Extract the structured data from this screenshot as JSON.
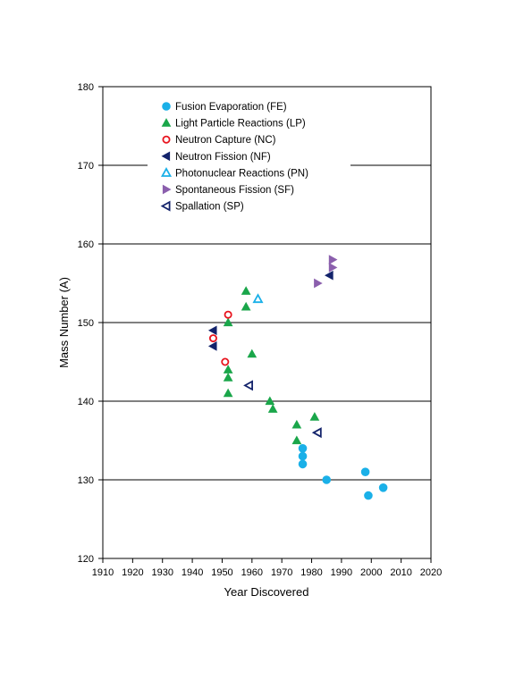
{
  "chart_data": {
    "type": "scatter",
    "xlabel": "Year Discovered",
    "ylabel": "Mass Number (A)",
    "xlim": [
      1910,
      2020
    ],
    "ylim": [
      120,
      180
    ],
    "x_ticks": [
      "1910",
      "1920",
      "1930",
      "1940",
      "1950",
      "1960",
      "1970",
      "1980",
      "1990",
      "2000",
      "2010",
      "2020"
    ],
    "y_ticks": [
      "120",
      "130",
      "140",
      "150",
      "160",
      "170",
      "180"
    ],
    "grid": "horizontal major",
    "legend_position": "upper-left inside",
    "series": [
      {
        "name": "Fusion Evaporation (FE)",
        "marker": "circle",
        "filled": true,
        "color": "#1ab0e8",
        "points": [
          [
            1977,
            134
          ],
          [
            1977,
            133
          ],
          [
            1977,
            132
          ],
          [
            1985,
            130
          ],
          [
            1998,
            131
          ],
          [
            1999,
            128
          ],
          [
            2004,
            129
          ]
        ]
      },
      {
        "name": "Light Particle Reactions (LP)",
        "marker": "triangle-up",
        "filled": true,
        "color": "#1aa64a",
        "points": [
          [
            1952,
            150
          ],
          [
            1958,
            154
          ],
          [
            1958,
            152
          ],
          [
            1960,
            146
          ],
          [
            1952,
            144
          ],
          [
            1952,
            143
          ],
          [
            1952,
            141
          ],
          [
            1966,
            140
          ],
          [
            1967,
            139
          ],
          [
            1975,
            137
          ],
          [
            1975,
            135
          ],
          [
            1981,
            138
          ]
        ]
      },
      {
        "name": "Neutron Capture (NC)",
        "marker": "circle",
        "filled": false,
        "color": "#e8141e",
        "points": [
          [
            1952,
            151
          ],
          [
            1947,
            148
          ],
          [
            1951,
            145
          ]
        ]
      },
      {
        "name": "Neutron Fission (NF)",
        "marker": "triangle-left",
        "filled": true,
        "color": "#13236b",
        "points": [
          [
            1947,
            149
          ],
          [
            1947,
            147
          ],
          [
            1986,
            156
          ]
        ]
      },
      {
        "name": "Photonuclear Reactions (PN)",
        "marker": "triangle-up",
        "filled": false,
        "color": "#1ab0e8",
        "points": [
          [
            1962,
            153
          ]
        ]
      },
      {
        "name": "Spontaneous Fission (SF)",
        "marker": "triangle-right",
        "filled": true,
        "color": "#8b5fad",
        "points": [
          [
            1982,
            155
          ],
          [
            1987,
            158
          ],
          [
            1987,
            157
          ]
        ]
      },
      {
        "name": "Spallation (SP)",
        "marker": "triangle-left",
        "filled": false,
        "color": "#13236b",
        "points": [
          [
            1959,
            142
          ],
          [
            1982,
            136
          ]
        ]
      }
    ]
  }
}
